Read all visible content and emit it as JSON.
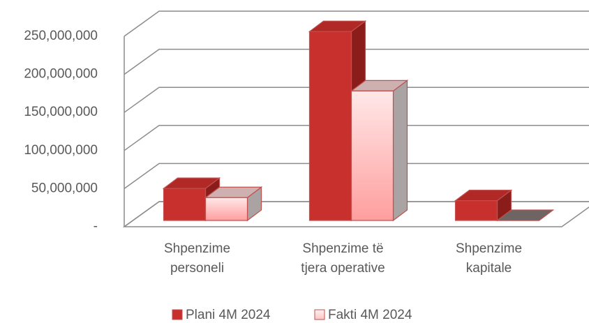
{
  "chart_data": {
    "type": "bar3d",
    "categories": [
      "Shpenzime personeli",
      "Shpenzime të tjera operative",
      "Shpenzime kapitale"
    ],
    "series": [
      {
        "name": "Plani 4M 2024",
        "color": "#c8302e",
        "values": [
          42000000,
          248000000,
          26000000
        ]
      },
      {
        "name": "Fakti 4M 2024",
        "color": "#ffc4c4",
        "values": [
          30000000,
          170000000,
          0
        ]
      }
    ],
    "ylim": [
      0,
      250000000
    ],
    "yticks": [
      {
        "value": 0,
        "label": "-"
      },
      {
        "value": 50000000,
        "label": "50,000,000"
      },
      {
        "value": 100000000,
        "label": "100,000,000"
      },
      {
        "value": 150000000,
        "label": "150,000,000"
      },
      {
        "value": 200000000,
        "label": "200,000,000"
      },
      {
        "value": 250000000,
        "label": "250,000,000"
      }
    ],
    "grid": true,
    "legend": "bottom"
  }
}
